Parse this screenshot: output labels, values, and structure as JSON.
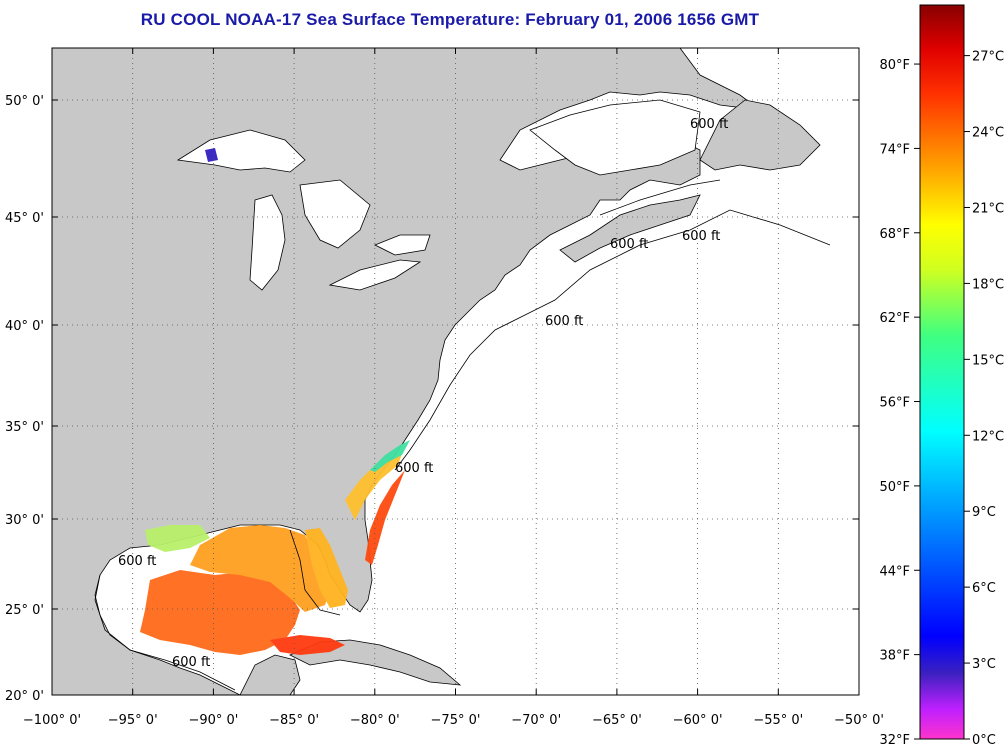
{
  "title": "RU COOL  NOAA-17  Sea Surface Temperature:  February 01, 2006 1656 GMT",
  "map": {
    "lon_labels": [
      "−100° 0'",
      "−95° 0'",
      "−90° 0'",
      "−85° 0'",
      "−80° 0'",
      "−75° 0'",
      "−70° 0'",
      "−65° 0'",
      "−60° 0'",
      "−55° 0'",
      "−50° 0'"
    ],
    "lat_labels": [
      "50° 0'",
      "45° 0'",
      "40° 0'",
      "35° 0'",
      "30° 0'",
      "25° 0'",
      "20° 0'"
    ],
    "isobath_label": "600 ft",
    "land_color": "#c8c8c8",
    "water_color": "#ffffff"
  },
  "colorbar": {
    "fahrenheit_labels": [
      "80°F",
      "74°F",
      "68°F",
      "62°F",
      "56°F",
      "50°F",
      "44°F",
      "38°F",
      "32°F"
    ],
    "celsius_labels": [
      "27°C",
      "24°C",
      "21°C",
      "18°C",
      "15°C",
      "12°C",
      "9°C",
      "6°C",
      "3°C",
      "0°C"
    ]
  }
}
